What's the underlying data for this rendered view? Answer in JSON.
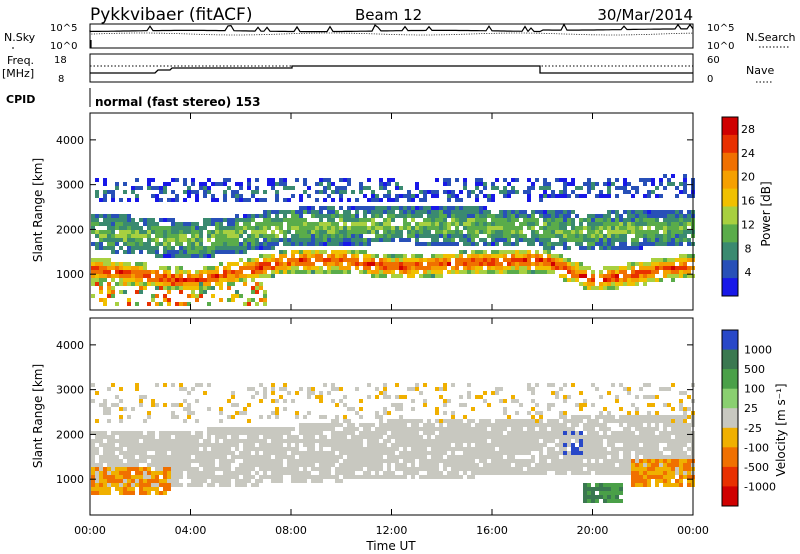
{
  "header": {
    "station": "Pykkvibaer (fitACF)",
    "beam": "Beam 12",
    "date": "30/Mar/2014"
  },
  "panels": {
    "nsky": {
      "label": "N.Sky",
      "left_ticks": [
        "10^5",
        "10^0"
      ],
      "right_ticks": [
        "10^5",
        "10^0"
      ],
      "right_label": "N.Search"
    },
    "freq": {
      "label_line1": "Freq.",
      "label_line2": "[MHz]",
      "left_ticks": [
        "18",
        "8"
      ],
      "right_ticks": [
        "60",
        "0"
      ],
      "right_label": "Nave"
    },
    "cpid": {
      "label": "CPID",
      "text": "normal (fast stereo) 153"
    }
  },
  "chart_data": [
    {
      "type": "heatmap",
      "panel": "power",
      "ylabel": "Slant Range [km]",
      "ylim": [
        200,
        4600
      ],
      "yticks": [
        "1000",
        "2000",
        "3000",
        "4000"
      ],
      "colorbar": {
        "label": "Power [dB]",
        "ticks": [
          "28",
          "24",
          "20",
          "16",
          "12",
          "8",
          "4"
        ],
        "range": [
          0,
          30
        ],
        "colors": [
          "#1818e8",
          "#2850b8",
          "#3a8a70",
          "#5aac4a",
          "#a8d040",
          "#f0c000",
          "#f5a000",
          "#f07000",
          "#e83000",
          "#d00000"
        ]
      },
      "features": [
        {
          "desc": "main band",
          "x_hours": [
            0,
            4,
            8,
            10,
            12,
            15,
            18,
            20,
            24
          ],
          "range_km": [
            1150,
            900,
            1350,
            1350,
            1200,
            1300,
            1350,
            900,
            1250
          ],
          "power_db": 26
        },
        {
          "desc": "upper band",
          "x_hours": [
            0,
            4,
            8,
            12,
            16,
            20,
            24
          ],
          "range_km": [
            2000,
            1800,
            2100,
            2150,
            2100,
            2000,
            2100
          ],
          "power_db": 12
        },
        {
          "desc": "top band",
          "x_hours": [
            0,
            12,
            24
          ],
          "range_km": [
            2900,
            2900,
            3000
          ],
          "power_db": 6
        }
      ]
    },
    {
      "type": "heatmap",
      "panel": "velocity",
      "ylabel": "Slant Range [km]",
      "ylim": [
        200,
        4600
      ],
      "yticks": [
        "1000",
        "2000",
        "3000",
        "4000"
      ],
      "colorbar": {
        "label": "Velocity [m s⁻¹]",
        "ticks": [
          "1000",
          "500",
          "100",
          "25",
          "-25",
          "-100",
          "-500",
          "-1000"
        ],
        "colors": [
          "#2848c8",
          "#3a7850",
          "#4aa048",
          "#8ad070",
          "#c8c8c0",
          "#f0b000",
          "#f07000",
          "#e83000",
          "#d00000"
        ]
      },
      "features": [
        {
          "desc": "ground scatter",
          "x_hours": [
            4,
            12,
            20
          ],
          "range_km": [
            1500,
            1700,
            1800
          ],
          "velocity_ms": 0
        },
        {
          "desc": "early negative patch",
          "x_hours": [
            0,
            3
          ],
          "range_km": [
            900,
            1200
          ],
          "velocity_ms": -300
        },
        {
          "desc": "late negative patch",
          "x_hours": [
            22,
            24
          ],
          "range_km": [
            1000,
            1300
          ],
          "velocity_ms": -300
        },
        {
          "desc": "positive patch",
          "x_hours": [
            20,
            21
          ],
          "range_km": [
            600,
            900
          ],
          "velocity_ms": 300
        }
      ]
    }
  ],
  "xaxis": {
    "label": "Time UT",
    "ticks": [
      "00:00",
      "04:00",
      "08:00",
      "12:00",
      "16:00",
      "20:00",
      "00:00"
    ],
    "range_hours": [
      0,
      24
    ]
  }
}
